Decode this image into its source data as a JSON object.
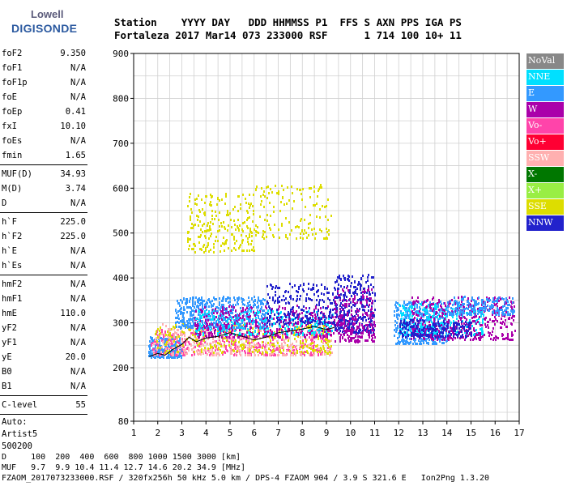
{
  "logo": {
    "line1": "Lowell",
    "line2": "DIGISONDE"
  },
  "header": {
    "line1": "Station    YYYY DAY   DDD HHMMSS P1  FFS S AXN PPS IGA PS",
    "line2": "Fortaleza 2017 Mar14 073 233000 RSF      1 714 100 10+ 11"
  },
  "params": {
    "group1": [
      {
        "k": "foF2",
        "v": "9.350"
      },
      {
        "k": "foF1",
        "v": "N/A"
      },
      {
        "k": "foF1p",
        "v": "N/A"
      },
      {
        "k": "foE",
        "v": "N/A"
      },
      {
        "k": "foEp",
        "v": "0.41"
      },
      {
        "k": "fxI",
        "v": "10.10"
      },
      {
        "k": "foEs",
        "v": "N/A"
      },
      {
        "k": "fmin",
        "v": "1.65"
      }
    ],
    "group2": [
      {
        "k": "MUF(D)",
        "v": "34.93"
      },
      {
        "k": "M(D)",
        "v": "3.74"
      },
      {
        "k": "D",
        "v": "N/A"
      }
    ],
    "group3": [
      {
        "k": "h`F",
        "v": "225.0"
      },
      {
        "k": "h`F2",
        "v": "225.0"
      },
      {
        "k": "h`E",
        "v": "N/A"
      },
      {
        "k": "h`Es",
        "v": "N/A"
      }
    ],
    "group4": [
      {
        "k": "hmF2",
        "v": "N/A"
      },
      {
        "k": "hmF1",
        "v": "N/A"
      },
      {
        "k": "hmE",
        "v": "110.0"
      },
      {
        "k": "yF2",
        "v": "N/A"
      },
      {
        "k": "yF1",
        "v": "N/A"
      },
      {
        "k": "yE",
        "v": "20.0"
      },
      {
        "k": "B0",
        "v": "N/A"
      },
      {
        "k": "B1",
        "v": "N/A"
      }
    ],
    "group5": [
      {
        "k": "C-level",
        "v": "55"
      }
    ],
    "auto": [
      "Auto:",
      "Artist5",
      "500200"
    ]
  },
  "legend": [
    {
      "label": "NoVal",
      "color": "#888888"
    },
    {
      "label": "NNE",
      "color": "#00e0ff"
    },
    {
      "label": "E",
      "color": "#3399ff"
    },
    {
      "label": "W",
      "color": "#aa00aa"
    },
    {
      "label": "Vo-",
      "color": "#ff44aa"
    },
    {
      "label": "Vo+",
      "color": "#ff0033"
    },
    {
      "label": "SSW",
      "color": "#ffb0b0"
    },
    {
      "label": "X-",
      "color": "#007700"
    },
    {
      "label": "X+",
      "color": "#99ee44"
    },
    {
      "label": "SSE",
      "color": "#dddd00"
    },
    {
      "label": "NNW",
      "color": "#2222cc"
    }
  ],
  "footer": {
    "line1": "D     100  200  400  600  800 1000 1500 3000 [km]",
    "line2": "MUF   9.7  9.9 10.4 11.4 12.7 14.6 20.2 34.9 [MHz]",
    "line3": "FZAOM_2017073233000.RSF / 320fx256h 50 kHz 5.0 km / DPS-4 FZAOM 904 / 3.9 S 321.6 E   Ion2Png 1.3.20"
  },
  "chart_data": {
    "type": "scatter",
    "xlim": [
      1,
      17
    ],
    "ylim": [
      80,
      900
    ],
    "x_ticks": [
      1,
      2,
      3,
      4,
      5,
      6,
      7,
      8,
      9,
      10,
      11,
      12,
      13,
      14,
      15,
      16,
      17
    ],
    "y_ticks": [
      80,
      200,
      300,
      400,
      500,
      600,
      700,
      800,
      900
    ],
    "grid": true,
    "trace": {
      "x": [
        1.65,
        2.0,
        2.3,
        2.6,
        3.0,
        3.3,
        3.6,
        4.0,
        4.5,
        5.0,
        5.5,
        6.0,
        6.5,
        7.0,
        7.5,
        8.0,
        8.5,
        9.0,
        9.35
      ],
      "y": [
        225,
        232,
        228,
        240,
        252,
        268,
        258,
        266,
        270,
        278,
        270,
        262,
        268,
        278,
        282,
        286,
        292,
        285,
        290
      ]
    },
    "clusters": [
      {
        "source": "E",
        "x": [
          1.6,
          3.0
        ],
        "y": [
          225,
          270
        ],
        "n": 260
      },
      {
        "source": "Vo-",
        "x": [
          1.7,
          9.2
        ],
        "y": [
          230,
          290
        ],
        "n": 420
      },
      {
        "source": "SSW",
        "x": [
          1.8,
          9.2
        ],
        "y": [
          230,
          300
        ],
        "n": 420
      },
      {
        "source": "SSE",
        "x": [
          1.8,
          9.2
        ],
        "y": [
          235,
          300
        ],
        "n": 260
      },
      {
        "source": "E",
        "x": [
          2.7,
          6.5
        ],
        "y": [
          290,
          360
        ],
        "n": 520
      },
      {
        "source": "W",
        "x": [
          3.5,
          9.3
        ],
        "y": [
          270,
          340
        ],
        "n": 420
      },
      {
        "source": "NNE",
        "x": [
          3.5,
          9.3
        ],
        "y": [
          275,
          330
        ],
        "n": 220
      },
      {
        "source": "NNW",
        "x": [
          6.5,
          9.3
        ],
        "y": [
          300,
          390
        ],
        "n": 220
      },
      {
        "source": "SSE",
        "x": [
          3.2,
          6.0
        ],
        "y": [
          460,
          590
        ],
        "n": 230
      },
      {
        "source": "SSE",
        "x": [
          6.0,
          9.2
        ],
        "y": [
          490,
          610
        ],
        "n": 140
      },
      {
        "source": "NNW",
        "x": [
          9.3,
          11.0
        ],
        "y": [
          280,
          410
        ],
        "n": 320
      },
      {
        "source": "W",
        "x": [
          9.3,
          11.0
        ],
        "y": [
          260,
          380
        ],
        "n": 220
      },
      {
        "source": "E",
        "x": [
          11.8,
          14.0
        ],
        "y": [
          255,
          350
        ],
        "n": 420
      },
      {
        "source": "NNE",
        "x": [
          12.0,
          15.5
        ],
        "y": [
          275,
          345
        ],
        "n": 260
      },
      {
        "source": "W",
        "x": [
          12.5,
          16.8
        ],
        "y": [
          265,
          360
        ],
        "n": 420
      },
      {
        "source": "NNW",
        "x": [
          12.0,
          15.0
        ],
        "y": [
          270,
          310
        ],
        "n": 200
      },
      {
        "source": "E",
        "x": [
          14.0,
          16.8
        ],
        "y": [
          320,
          360
        ],
        "n": 200
      }
    ]
  }
}
